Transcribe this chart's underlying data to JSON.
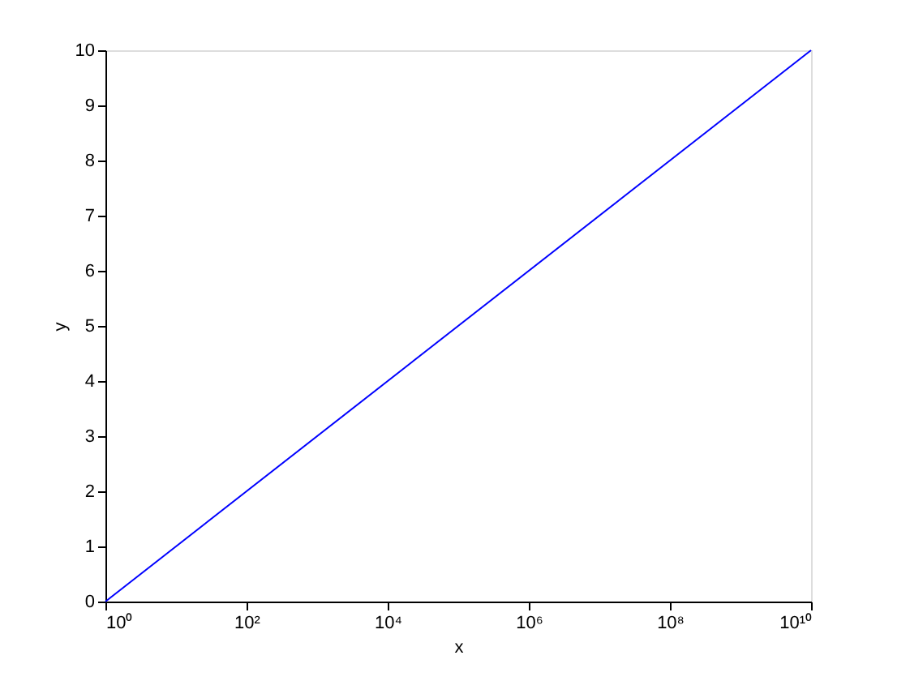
{
  "chart_data": {
    "type": "line",
    "xlabel": "x",
    "ylabel": "y",
    "log": "x",
    "x": [
      1,
      10000000000
    ],
    "series": [
      {
        "color": "#0000ff",
        "values": [
          0,
          10
        ]
      }
    ],
    "xlim": [
      1,
      10000000000
    ],
    "xticks": [
      {
        "value": 1,
        "label": "10⁰"
      },
      {
        "value": 100,
        "label": "10²"
      },
      {
        "value": 10000,
        "label": "10⁴"
      },
      {
        "value": 1000000,
        "label": "10⁶"
      },
      {
        "value": 100000000,
        "label": "10⁸"
      },
      {
        "value": 10000000000,
        "label": "10¹⁰"
      }
    ],
    "ylim": [
      0,
      10
    ],
    "yticks": [
      0,
      1,
      2,
      3,
      4,
      5,
      6,
      7,
      8,
      9,
      10
    ],
    "grid": false,
    "line_style": "solid"
  }
}
